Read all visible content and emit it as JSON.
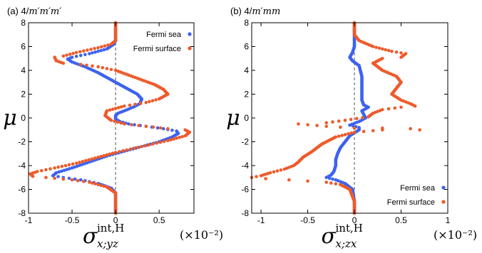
{
  "chart_data": [
    {
      "type": "scatter",
      "title_prefix": "(a) 4/",
      "title_symmetry": "m′m′m′",
      "ylabel": "μ",
      "xlabel_symbol": "σ",
      "xlabel_sup": "int,H",
      "xlabel_sub": "x;yz",
      "unit_label": "(×10⁻²)",
      "xlim": [
        -1.0,
        0.9
      ],
      "ylim": [
        -8,
        8
      ],
      "x_ticks": [
        {
          "v": -1,
          "label": "-1"
        },
        {
          "v": -0.5,
          "label": "-0.5"
        },
        {
          "v": 0,
          "label": "0"
        },
        {
          "v": 0.5,
          "label": "0.5"
        }
      ],
      "y_ticks": [
        {
          "v": -8,
          "label": "-8"
        },
        {
          "v": -6,
          "label": "-6"
        },
        {
          "v": -4,
          "label": "-4"
        },
        {
          "v": -2,
          "label": "-2"
        },
        {
          "v": 0,
          "label": "0"
        },
        {
          "v": 2,
          "label": "2"
        },
        {
          "v": 4,
          "label": "4"
        },
        {
          "v": 6,
          "label": "6"
        },
        {
          "v": 8,
          "label": "8"
        }
      ],
      "legend_position": "top-right",
      "series": [
        {
          "name": "Fermi sea",
          "color": "#3d62f0",
          "points": [
            [
              0,
              8
            ],
            [
              0,
              7
            ],
            [
              0,
              6.5
            ],
            [
              -0.02,
              6.2
            ],
            [
              -0.1,
              5.8
            ],
            [
              -0.3,
              5.4
            ],
            [
              -0.5,
              5.1
            ],
            [
              -0.55,
              4.95
            ],
            [
              -0.5,
              4.7
            ],
            [
              -0.35,
              4.3
            ],
            [
              -0.2,
              3.8
            ],
            [
              -0.05,
              3.2
            ],
            [
              0.05,
              2.8
            ],
            [
              0.15,
              2.4
            ],
            [
              0.25,
              2.0
            ],
            [
              0.3,
              1.6
            ],
            [
              0.28,
              1.2
            ],
            [
              0.2,
              0.9
            ],
            [
              0.1,
              0.6
            ],
            [
              0.03,
              0.4
            ],
            [
              0,
              0.2
            ],
            [
              0,
              -0.1
            ],
            [
              0.05,
              -0.3
            ],
            [
              0.15,
              -0.5
            ],
            [
              0.35,
              -0.7
            ],
            [
              0.55,
              -0.9
            ],
            [
              0.7,
              -1.1
            ],
            [
              0.72,
              -1.3
            ],
            [
              0.65,
              -1.6
            ],
            [
              0.5,
              -2.0
            ],
            [
              0.3,
              -2.4
            ],
            [
              0.1,
              -2.8
            ],
            [
              -0.1,
              -3.2
            ],
            [
              -0.3,
              -3.7
            ],
            [
              -0.5,
              -4.2
            ],
            [
              -0.68,
              -4.6
            ],
            [
              -0.72,
              -4.85
            ],
            [
              -0.6,
              -5.0
            ],
            [
              -0.4,
              -5.2
            ],
            [
              -0.2,
              -5.5
            ],
            [
              -0.05,
              -5.9
            ],
            [
              0,
              -6.3
            ],
            [
              0,
              -7
            ],
            [
              0,
              -8
            ]
          ]
        },
        {
          "name": "Fermi surface",
          "color": "#ee5b2b",
          "points": [
            [
              0,
              8
            ],
            [
              0,
              7
            ],
            [
              0,
              6.5
            ],
            [
              -0.05,
              6.2
            ],
            [
              -0.2,
              5.9
            ],
            [
              -0.45,
              5.5
            ],
            [
              -0.6,
              5.2
            ],
            [
              -0.7,
              5.1
            ],
            [
              -0.68,
              4.8
            ],
            [
              -0.6,
              4.6
            ],
            [
              -0.4,
              4.5
            ],
            [
              -0.2,
              4.3
            ],
            [
              0,
              4.0
            ],
            [
              0.15,
              3.6
            ],
            [
              0.3,
              3.2
            ],
            [
              0.45,
              2.8
            ],
            [
              0.55,
              2.4
            ],
            [
              0.6,
              2.0
            ],
            [
              0.5,
              1.6
            ],
            [
              0.35,
              1.3
            ],
            [
              0.1,
              1.0
            ],
            [
              -0.1,
              0.6
            ],
            [
              -0.12,
              0.2
            ],
            [
              -0.05,
              -0.2
            ],
            [
              0.1,
              -0.5
            ],
            [
              0.35,
              -0.7
            ],
            [
              0.6,
              -0.9
            ],
            [
              0.8,
              -1.0
            ],
            [
              0.85,
              -1.2
            ],
            [
              0.8,
              -1.5
            ],
            [
              0.6,
              -1.9
            ],
            [
              0.3,
              -2.4
            ],
            [
              0,
              -2.9
            ],
            [
              -0.2,
              -3.3
            ],
            [
              -0.45,
              -3.8
            ],
            [
              -0.7,
              -4.2
            ],
            [
              -0.9,
              -4.5
            ],
            [
              -0.98,
              -4.7
            ],
            [
              -0.95,
              -4.9
            ],
            [
              -0.8,
              -5.0
            ],
            [
              -0.5,
              -5.2
            ],
            [
              -0.3,
              -5.4
            ],
            [
              -0.1,
              -5.8
            ],
            [
              0,
              -6.3
            ],
            [
              0,
              -7
            ],
            [
              0,
              -8
            ]
          ]
        }
      ]
    },
    {
      "type": "scatter",
      "title_prefix": "(b) 4/",
      "title_symmetry": "m′mm",
      "ylabel": "μ",
      "xlabel_symbol": "σ",
      "xlabel_sup": "int,H",
      "xlabel_sub": "x;zx",
      "unit_label": "(×10⁻²)",
      "xlim": [
        -1.1,
        1.0
      ],
      "ylim": [
        -8,
        8
      ],
      "x_ticks": [
        {
          "v": -1,
          "label": "-1"
        },
        {
          "v": -0.5,
          "label": "-0.5"
        },
        {
          "v": 0,
          "label": "0"
        },
        {
          "v": 0.5,
          "label": "0.5"
        },
        {
          "v": 1,
          "label": "1"
        }
      ],
      "y_ticks": [
        {
          "v": -8,
          "label": "-8"
        },
        {
          "v": -6,
          "label": "-6"
        },
        {
          "v": -4,
          "label": "-4"
        },
        {
          "v": -2,
          "label": "-2"
        },
        {
          "v": 0,
          "label": "0"
        },
        {
          "v": 2,
          "label": "2"
        },
        {
          "v": 4,
          "label": "4"
        },
        {
          "v": 6,
          "label": "6"
        },
        {
          "v": 8,
          "label": "8"
        }
      ],
      "legend_position": "bottom-right",
      "series": [
        {
          "name": "Fermi sea",
          "color": "#3d62f0",
          "points": [
            [
              0,
              8
            ],
            [
              0,
              7
            ],
            [
              0,
              6
            ],
            [
              -0.02,
              5.5
            ],
            [
              -0.05,
              5.1
            ],
            [
              -0.02,
              4.8
            ],
            [
              0.05,
              4.4
            ],
            [
              0.08,
              3.5
            ],
            [
              0.08,
              2.5
            ],
            [
              0.08,
              1.5
            ],
            [
              0.1,
              1.1
            ],
            [
              0.15,
              0.9
            ],
            [
              0.08,
              0.6
            ],
            [
              0.1,
              0.3
            ],
            [
              0.12,
              0
            ],
            [
              0.05,
              -0.3
            ],
            [
              -0.05,
              -0.6
            ],
            [
              0.05,
              -0.8
            ],
            [
              0.05,
              -1.0
            ],
            [
              -0.05,
              -1.5
            ],
            [
              -0.1,
              -2.0
            ],
            [
              -0.15,
              -2.5
            ],
            [
              -0.18,
              -3.0
            ],
            [
              -0.2,
              -3.5
            ],
            [
              -0.2,
              -4.0
            ],
            [
              -0.22,
              -4.5
            ],
            [
              -0.25,
              -4.8
            ],
            [
              -0.3,
              -5.0
            ],
            [
              -0.2,
              -5.2
            ],
            [
              -0.1,
              -5.5
            ],
            [
              -0.02,
              -6.0
            ],
            [
              0,
              -7
            ],
            [
              0,
              -8
            ]
          ]
        },
        {
          "name": "Fermi surface",
          "color": "#ee5b2b",
          "points": [
            [
              0,
              8
            ],
            [
              0,
              7
            ],
            [
              0.05,
              6.5
            ],
            [
              0.2,
              6.0
            ],
            [
              0.4,
              5.6
            ],
            [
              0.55,
              5.4
            ],
            [
              0.5,
              5.1
            ],
            [
              0.3,
              5.0
            ],
            [
              0.2,
              4.6
            ],
            [
              0.3,
              4.0
            ],
            [
              0.45,
              3.5
            ],
            [
              0.5,
              3.0
            ],
            [
              0.45,
              2.5
            ],
            [
              0.4,
              2.0
            ],
            [
              0.5,
              1.5
            ],
            [
              0.6,
              1.2
            ],
            [
              0.65,
              1.0
            ],
            [
              0.5,
              0.9
            ],
            [
              0.3,
              0.7
            ],
            [
              0.2,
              0.4
            ],
            [
              0.15,
              0.1
            ],
            [
              -0.1,
              -0.2
            ],
            [
              -0.3,
              -0.4
            ],
            [
              -0.6,
              -0.5
            ],
            [
              -0.3,
              -0.7
            ],
            [
              0,
              -0.85
            ],
            [
              0.3,
              -0.85
            ],
            [
              0.6,
              -0.9
            ],
            [
              0.7,
              -1.0
            ],
            [
              0.3,
              -1.0
            ],
            [
              0,
              -1.2
            ],
            [
              -0.2,
              -1.6
            ],
            [
              -0.35,
              -2.2
            ],
            [
              -0.45,
              -2.8
            ],
            [
              -0.55,
              -3.3
            ],
            [
              -0.6,
              -3.7
            ],
            [
              -0.65,
              -4.0
            ],
            [
              -0.75,
              -4.3
            ],
            [
              -0.9,
              -4.6
            ],
            [
              -1.0,
              -4.85
            ],
            [
              -1.1,
              -5.0
            ],
            [
              -0.95,
              -5.1
            ],
            [
              -0.7,
              -5.2
            ],
            [
              -0.5,
              -5.3
            ],
            [
              -0.3,
              -5.4
            ],
            [
              -0.15,
              -5.6
            ],
            [
              -0.05,
              -6.0
            ],
            [
              0,
              -7
            ],
            [
              0,
              -8
            ]
          ]
        }
      ]
    }
  ]
}
